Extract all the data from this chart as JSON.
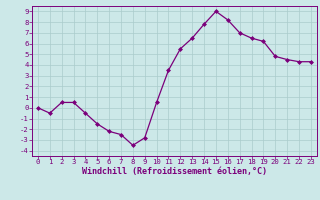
{
  "x": [
    0,
    1,
    2,
    3,
    4,
    5,
    6,
    7,
    8,
    9,
    10,
    11,
    12,
    13,
    14,
    15,
    16,
    17,
    18,
    19,
    20,
    21,
    22,
    23
  ],
  "y": [
    0.0,
    -0.5,
    0.5,
    0.5,
    -0.5,
    -1.5,
    -2.2,
    -2.5,
    -3.5,
    -2.8,
    0.5,
    3.5,
    5.5,
    6.5,
    7.8,
    9.0,
    8.2,
    7.0,
    6.5,
    6.2,
    4.8,
    4.5,
    4.3,
    4.3
  ],
  "line_color": "#7B007B",
  "marker": "D",
  "marker_size": 2.0,
  "bg_color": "#cce8e8",
  "grid_color": "#aacccc",
  "xlabel": "Windchill (Refroidissement éolien,°C)",
  "xlim": [
    -0.5,
    23.5
  ],
  "ylim": [
    -4.5,
    9.5
  ],
  "yticks": [
    -4,
    -3,
    -2,
    -1,
    0,
    1,
    2,
    3,
    4,
    5,
    6,
    7,
    8,
    9
  ],
  "xticks": [
    0,
    1,
    2,
    3,
    4,
    5,
    6,
    7,
    8,
    9,
    10,
    11,
    12,
    13,
    14,
    15,
    16,
    17,
    18,
    19,
    20,
    21,
    22,
    23
  ],
  "axis_color": "#7B007B",
  "tick_color": "#7B007B",
  "label_color": "#7B007B",
  "tick_fontsize": 5.2,
  "xlabel_fontsize": 6.0
}
